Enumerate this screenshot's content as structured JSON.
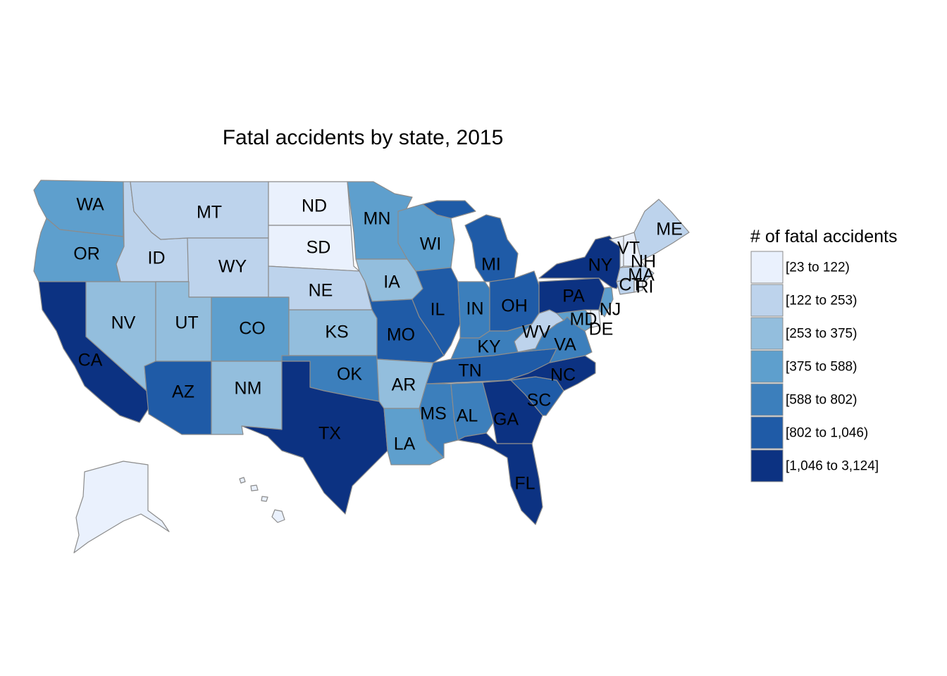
{
  "title": "Fatal accidents by state, 2015",
  "legend": {
    "title": "# of fatal accidents",
    "classes": [
      {
        "label": "[23 to 122)",
        "color": "#eaf1fd"
      },
      {
        "label": "[122 to 253)",
        "color": "#bdd3ec"
      },
      {
        "label": "[253 to 375)",
        "color": "#93bedd"
      },
      {
        "label": "[375 to 588)",
        "color": "#5e9fcd"
      },
      {
        "label": "[588 to 802)",
        "color": "#3c7fbc"
      },
      {
        "label": "[802 to 1,046)",
        "color": "#1f5ba7"
      },
      {
        "label": "[1,046 to 3,124]",
        "color": "#0c3282"
      }
    ]
  },
  "states": [
    {
      "abbr": "WA",
      "class": 3
    },
    {
      "abbr": "OR",
      "class": 3
    },
    {
      "abbr": "CA",
      "class": 6
    },
    {
      "abbr": "NV",
      "class": 2
    },
    {
      "abbr": "ID",
      "class": 1
    },
    {
      "abbr": "MT",
      "class": 1
    },
    {
      "abbr": "WY",
      "class": 1
    },
    {
      "abbr": "UT",
      "class": 2
    },
    {
      "abbr": "AZ",
      "class": 5
    },
    {
      "abbr": "CO",
      "class": 3
    },
    {
      "abbr": "NM",
      "class": 2
    },
    {
      "abbr": "ND",
      "class": 0
    },
    {
      "abbr": "SD",
      "class": 0
    },
    {
      "abbr": "NE",
      "class": 1
    },
    {
      "abbr": "KS",
      "class": 2
    },
    {
      "abbr": "OK",
      "class": 4
    },
    {
      "abbr": "TX",
      "class": 6
    },
    {
      "abbr": "MN",
      "class": 3
    },
    {
      "abbr": "IA",
      "class": 2
    },
    {
      "abbr": "MO",
      "class": 5
    },
    {
      "abbr": "AR",
      "class": 2
    },
    {
      "abbr": "LA",
      "class": 3
    },
    {
      "abbr": "WI",
      "class": 3
    },
    {
      "abbr": "IL",
      "class": 5
    },
    {
      "abbr": "MI",
      "class": 5
    },
    {
      "abbr": "IN",
      "class": 4
    },
    {
      "abbr": "OH",
      "class": 5
    },
    {
      "abbr": "KY",
      "class": 4
    },
    {
      "abbr": "TN",
      "class": 5
    },
    {
      "abbr": "MS",
      "class": 4
    },
    {
      "abbr": "AL",
      "class": 4
    },
    {
      "abbr": "GA",
      "class": 6
    },
    {
      "abbr": "FL",
      "class": 6
    },
    {
      "abbr": "SC",
      "class": 5
    },
    {
      "abbr": "NC",
      "class": 6
    },
    {
      "abbr": "VA",
      "class": 4
    },
    {
      "abbr": "WV",
      "class": 1
    },
    {
      "abbr": "MD",
      "class": 3
    },
    {
      "abbr": "DE",
      "class": 0
    },
    {
      "abbr": "NJ",
      "class": 3
    },
    {
      "abbr": "PA",
      "class": 6
    },
    {
      "abbr": "NY",
      "class": 6
    },
    {
      "abbr": "CT",
      "class": 1
    },
    {
      "abbr": "RI",
      "class": 0
    },
    {
      "abbr": "MA",
      "class": 1
    },
    {
      "abbr": "VT",
      "class": 0
    },
    {
      "abbr": "NH",
      "class": 0
    },
    {
      "abbr": "ME",
      "class": 1
    },
    {
      "abbr": "AK",
      "class": 0
    },
    {
      "abbr": "HI",
      "class": 0
    }
  ]
}
